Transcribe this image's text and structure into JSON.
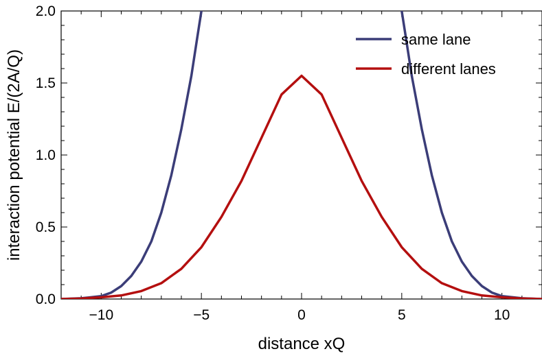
{
  "chart_data": {
    "type": "line",
    "title": "",
    "xlabel": "distance xQ",
    "ylabel": "interaction potential E/(2A/Q)",
    "xlim": [
      -12,
      12
    ],
    "ylim": [
      0,
      2.0
    ],
    "x_ticks": [
      -10,
      -5,
      0,
      5,
      10
    ],
    "x_tick_labels": [
      "−10",
      "−5",
      "0",
      "5",
      "10"
    ],
    "y_ticks": [
      0.0,
      0.5,
      1.0,
      1.5,
      2.0
    ],
    "y_tick_labels": [
      "0.0",
      "0.5",
      "1.0",
      "1.5",
      "2.0"
    ],
    "grid": false,
    "legend_position": "top-right",
    "series": [
      {
        "name": "same lane",
        "color": "#3b3d78",
        "x": [
          -12,
          -11,
          -10,
          -9.5,
          -9,
          -8.5,
          -8,
          -7.5,
          -7,
          -6.5,
          -6,
          -5.5,
          -5.2,
          -5,
          -4.9,
          4.9,
          5,
          5.2,
          5.5,
          6,
          6.5,
          7,
          7.5,
          8,
          8.5,
          9,
          9.5,
          10,
          11,
          12
        ],
        "y": [
          0.0,
          0.005,
          0.02,
          0.045,
          0.09,
          0.16,
          0.26,
          0.4,
          0.6,
          0.86,
          1.18,
          1.55,
          1.82,
          2.0,
          2.1,
          2.1,
          2.0,
          1.82,
          1.55,
          1.18,
          0.86,
          0.6,
          0.4,
          0.26,
          0.16,
          0.09,
          0.045,
          0.02,
          0.005,
          0.0
        ]
      },
      {
        "name": "different lanes",
        "color": "#b40f0f",
        "x": [
          -12,
          -11,
          -10,
          -9,
          -8,
          -7,
          -6,
          -5,
          -4,
          -3,
          -2,
          -1,
          0,
          1,
          2,
          3,
          4,
          5,
          6,
          7,
          8,
          9,
          10,
          11,
          12
        ],
        "y": [
          0.0,
          0.004,
          0.012,
          0.025,
          0.055,
          0.11,
          0.21,
          0.36,
          0.57,
          0.82,
          1.12,
          1.42,
          1.55,
          1.42,
          1.12,
          0.82,
          0.57,
          0.36,
          0.21,
          0.11,
          0.055,
          0.025,
          0.012,
          0.004,
          0.0
        ]
      }
    ]
  }
}
